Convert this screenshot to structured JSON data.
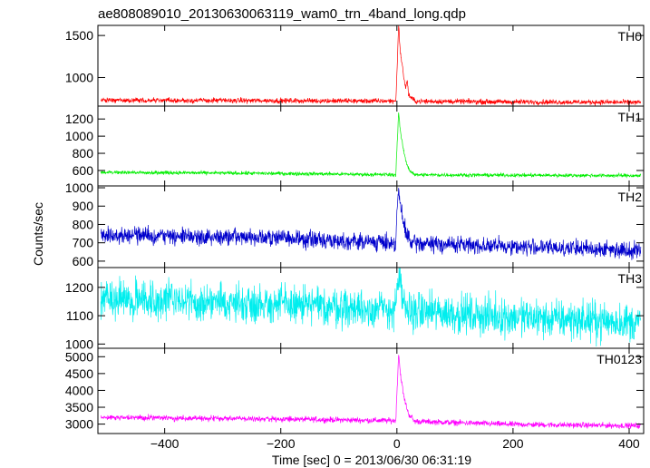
{
  "chart_data": {
    "type": "line",
    "title": "ae808089010_20130630063119_wam0_trn_4band_long.qdp",
    "xlabel": "Time [sec] 0 = 2013/06/30 06:31:19",
    "ylabel": "Counts/sec",
    "xlim": [
      -515,
      425
    ],
    "x_ticks": [
      -400,
      -200,
      0,
      200,
      400
    ],
    "x_tick_labels": [
      "−400",
      "−200",
      "0",
      "200",
      "400"
    ],
    "panels": [
      {
        "name": "TH0",
        "color": "#ff0000",
        "ylim": [
          660,
          1620
        ],
        "y_ticks": [
          1000,
          1500
        ],
        "series": {
          "baseline": [
            [
              -510,
              730
            ],
            [
              -200,
              725
            ],
            [
              0,
              720
            ],
            [
              200,
              710
            ],
            [
              420,
              705
            ]
          ],
          "noise_amplitude": 40,
          "burst_points": [
            [
              -2,
              720
            ],
            [
              0,
              1050
            ],
            [
              3,
              1620
            ],
            [
              6,
              1300
            ],
            [
              9,
              1150
            ],
            [
              12,
              1000
            ],
            [
              15,
              880
            ],
            [
              18,
              960
            ],
            [
              20,
              800
            ],
            [
              24,
              760
            ],
            [
              30,
              730
            ]
          ]
        }
      },
      {
        "name": "TH1",
        "color": "#00ee00",
        "ylim": [
          420,
          1350
        ],
        "y_ticks": [
          600,
          800,
          1000,
          1200
        ],
        "series": {
          "baseline": [
            [
              -510,
              580
            ],
            [
              -200,
              565
            ],
            [
              0,
              550
            ],
            [
              200,
              545
            ],
            [
              420,
              540
            ]
          ],
          "noise_amplitude": 28,
          "burst_points": [
            [
              -2,
              550
            ],
            [
              0,
              850
            ],
            [
              3,
              1280
            ],
            [
              6,
              1050
            ],
            [
              9,
              930
            ],
            [
              12,
              820
            ],
            [
              15,
              720
            ],
            [
              18,
              660
            ],
            [
              22,
              600
            ],
            [
              30,
              560
            ]
          ]
        }
      },
      {
        "name": "TH2",
        "color": "#0000cc",
        "ylim": [
          565,
          1010
        ],
        "y_ticks": [
          600,
          700,
          800,
          900,
          1000
        ],
        "series": {
          "baseline": [
            [
              -510,
              745
            ],
            [
              -200,
              725
            ],
            [
              0,
              700
            ],
            [
              200,
              680
            ],
            [
              420,
              660
            ]
          ],
          "noise_amplitude": 60,
          "burst_points": [
            [
              -2,
              700
            ],
            [
              0,
              860
            ],
            [
              3,
              990
            ],
            [
              6,
              900
            ],
            [
              10,
              820
            ],
            [
              15,
              760
            ],
            [
              22,
              720
            ]
          ]
        }
      },
      {
        "name": "TH3",
        "color": "#00eeee",
        "ylim": [
          985,
          1270
        ],
        "y_ticks": [
          1000,
          1100,
          1200
        ],
        "series": {
          "baseline": [
            [
              -510,
              1160
            ],
            [
              -200,
              1140
            ],
            [
              0,
              1120
            ],
            [
              200,
              1095
            ],
            [
              420,
              1075
            ]
          ],
          "noise_amplitude": 90,
          "burst_points": [
            [
              -2,
              1130
            ],
            [
              0,
              1200
            ],
            [
              4,
              1240
            ],
            [
              8,
              1160
            ],
            [
              14,
              1130
            ]
          ]
        }
      },
      {
        "name": "TH0123",
        "color": "#ff00ff",
        "ylim": [
          2720,
          5250
        ],
        "y_ticks": [
          3000,
          3500,
          4000,
          4500,
          5000
        ],
        "series": {
          "baseline": [
            [
              -510,
              3200
            ],
            [
              -200,
              3150
            ],
            [
              0,
              3100
            ],
            [
              200,
              2990
            ],
            [
              420,
              2950
            ]
          ],
          "noise_amplitude": 110,
          "burst_points": [
            [
              -2,
              3100
            ],
            [
              0,
              3900
            ],
            [
              3,
              5100
            ],
            [
              6,
              4500
            ],
            [
              9,
              4150
            ],
            [
              12,
              3800
            ],
            [
              16,
              3550
            ],
            [
              20,
              3300
            ],
            [
              28,
              3150
            ]
          ]
        }
      }
    ],
    "grid": false,
    "legend": "panel labels top-right of each panel"
  }
}
